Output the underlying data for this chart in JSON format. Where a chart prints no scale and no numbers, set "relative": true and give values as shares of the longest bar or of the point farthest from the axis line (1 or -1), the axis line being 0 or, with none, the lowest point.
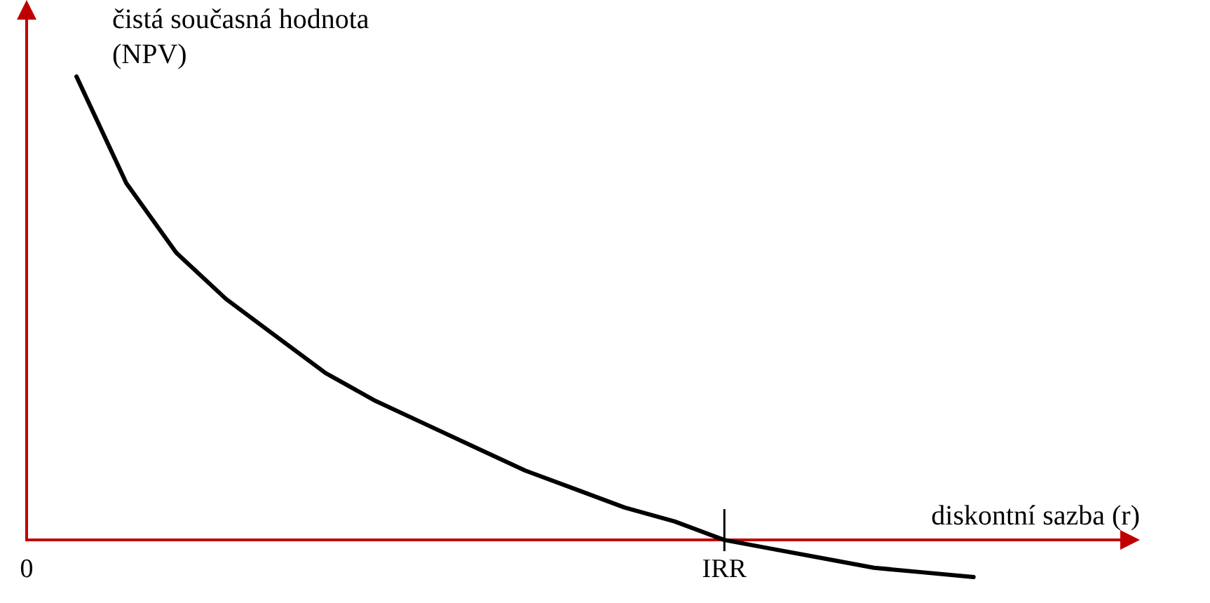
{
  "chart_data": {
    "type": "line",
    "relative": true,
    "xlabel": "diskontní sazba (r)",
    "ylabel": "čistá současná hodnota (NPV)",
    "categories": [
      "0",
      null,
      null,
      null,
      null,
      null,
      null,
      null,
      null,
      null,
      null,
      null,
      null,
      null,
      "IRR",
      null,
      null,
      null,
      null,
      null,
      null,
      null,
      null
    ],
    "series": [
      {
        "color": "#000000",
        "values": [
          null,
          1,
          0.77,
          0.62,
          0.52,
          0.44,
          0.36,
          0.3,
          0.25,
          0.2,
          0.15,
          0.11,
          0.07,
          0.04,
          0,
          -0.02,
          -0.04,
          -0.06,
          -0.07,
          -0.08,
          null,
          null,
          null
        ]
      }
    ],
    "ref_lines": [
      {
        "axis": "x",
        "value": "IRR",
        "color": "#000000"
      }
    ],
    "marker": "none",
    "line_style": "solid",
    "grid": false,
    "legend": false,
    "tick_labels": "x"
  }
}
